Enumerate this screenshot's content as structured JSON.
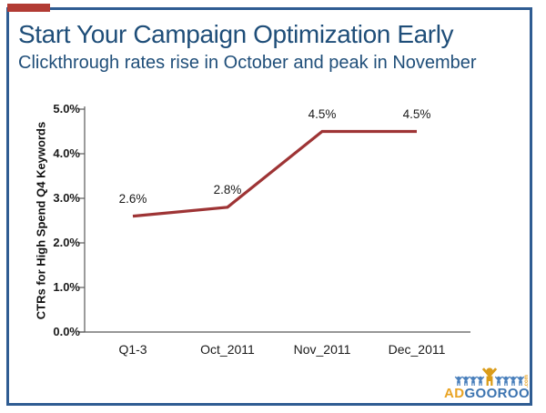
{
  "slide": {
    "title": "Start Your Campaign Optimization Early",
    "subtitle": "Clickthrough rates rise in October and peak in November",
    "title_color": "#1f4e79",
    "border_color": "#2f5c92",
    "accent_bar_color": "#b23b34"
  },
  "chart_data": {
    "type": "line",
    "title": "",
    "categories": [
      "Q1-3",
      "Oct_2011",
      "Nov_2011",
      "Dec_2011"
    ],
    "series": [
      {
        "name": "CTRs for High Spend Q4 Keywords",
        "values": [
          2.6,
          2.8,
          4.5,
          4.5
        ]
      }
    ],
    "point_labels": [
      "2.6%",
      "2.8%",
      "4.5%",
      "4.5%"
    ],
    "xlabel": "",
    "ylabel": "CTRs for High Spend Q4 Keywords",
    "ytick_labels": [
      "0.0%",
      "1.0%",
      "2.0%",
      "3.0%",
      "4.0%",
      "5.0%"
    ],
    "ylim": [
      0,
      5
    ],
    "ytick_step": 1,
    "grid": false,
    "legend_position": "none",
    "line_color": "#9e3435",
    "axis_color": "#595959",
    "label_color": "#1a1a1a"
  },
  "logo": {
    "text_ad": "AD",
    "text_gooroo": "GOOROO",
    "text_com": ".com",
    "ad_color": "#e9a424",
    "gooroo_color": "#3c74b0",
    "figure_blue": "#4a80bc",
    "figure_gold": "#da9c1a"
  }
}
